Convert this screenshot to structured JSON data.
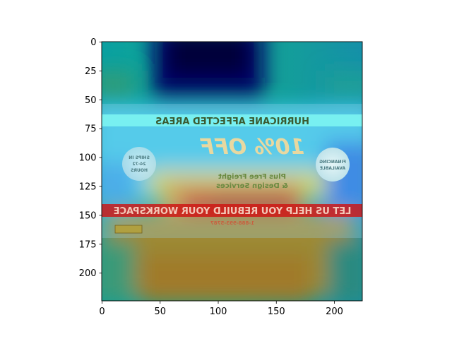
{
  "chart_data": {
    "type": "heatmap",
    "title": "",
    "xlabel": "",
    "ylabel": "",
    "xlim": [
      0,
      224
    ],
    "ylim": [
      224,
      0
    ],
    "xticks": [
      0,
      50,
      100,
      150,
      200
    ],
    "yticks": [
      0,
      25,
      50,
      75,
      100,
      125,
      150,
      175,
      200
    ],
    "colormap": "jet",
    "overlay": "attention heatmap over a horizontally mirrored advertisement image",
    "grid": false,
    "legend": "none"
  },
  "image": {
    "banner_top": "HURRICANE AFFECTED AREAS",
    "discount": "10% OFF",
    "sub_line_1": "Plus Free Freight",
    "sub_line_2": "& Design Services",
    "badge_left": [
      "SHIPS IN",
      "24-72",
      "HOURS"
    ],
    "badge_right": [
      "FINANCING",
      "AVAILABLE"
    ],
    "banner_bottom": "LET US HELP YOU REBUILD YOUR WORKSPACE",
    "phone": "1-888-993-5787"
  },
  "colors": {
    "banner_top": "#7ff7f2",
    "banner_bottom": "#d01010",
    "badge": "#cfe9ef"
  }
}
